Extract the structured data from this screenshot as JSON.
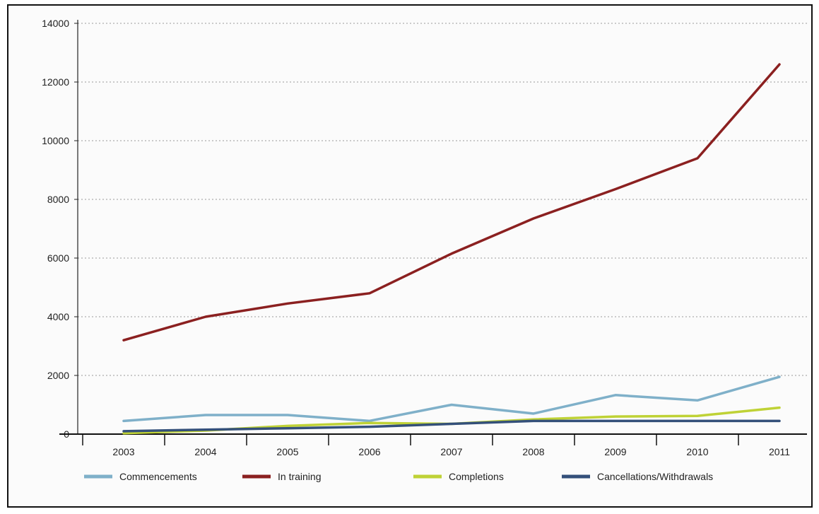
{
  "chart_data": {
    "type": "line",
    "title": "",
    "xlabel": "",
    "ylabel": "",
    "categories": [
      "2003",
      "2004",
      "2005",
      "2006",
      "2007",
      "2008",
      "2009",
      "2010",
      "2011"
    ],
    "ylim": [
      0,
      14000
    ],
    "yticks": [
      "0",
      "2000",
      "4000",
      "6000",
      "8000",
      "10000",
      "12000",
      "14000"
    ],
    "grid": "horizontal dotted",
    "legend_position": "bottom",
    "series": [
      {
        "name": "Commencements",
        "color": "#7fb0c9",
        "values": [
          450,
          650,
          650,
          450,
          1000,
          700,
          1330,
          1150,
          1950
        ]
      },
      {
        "name": "In training",
        "color": "#8b2020",
        "values": [
          3200,
          4000,
          4450,
          4800,
          6150,
          7350,
          8350,
          9400,
          12600
        ]
      },
      {
        "name": "Completions",
        "color": "#bfd236",
        "values": [
          30,
          120,
          280,
          380,
          350,
          500,
          600,
          620,
          900
        ]
      },
      {
        "name": "Cancellations/Withdrawals",
        "color": "#34507a",
        "values": [
          100,
          150,
          200,
          250,
          350,
          450,
          450,
          450,
          450
        ]
      }
    ]
  }
}
